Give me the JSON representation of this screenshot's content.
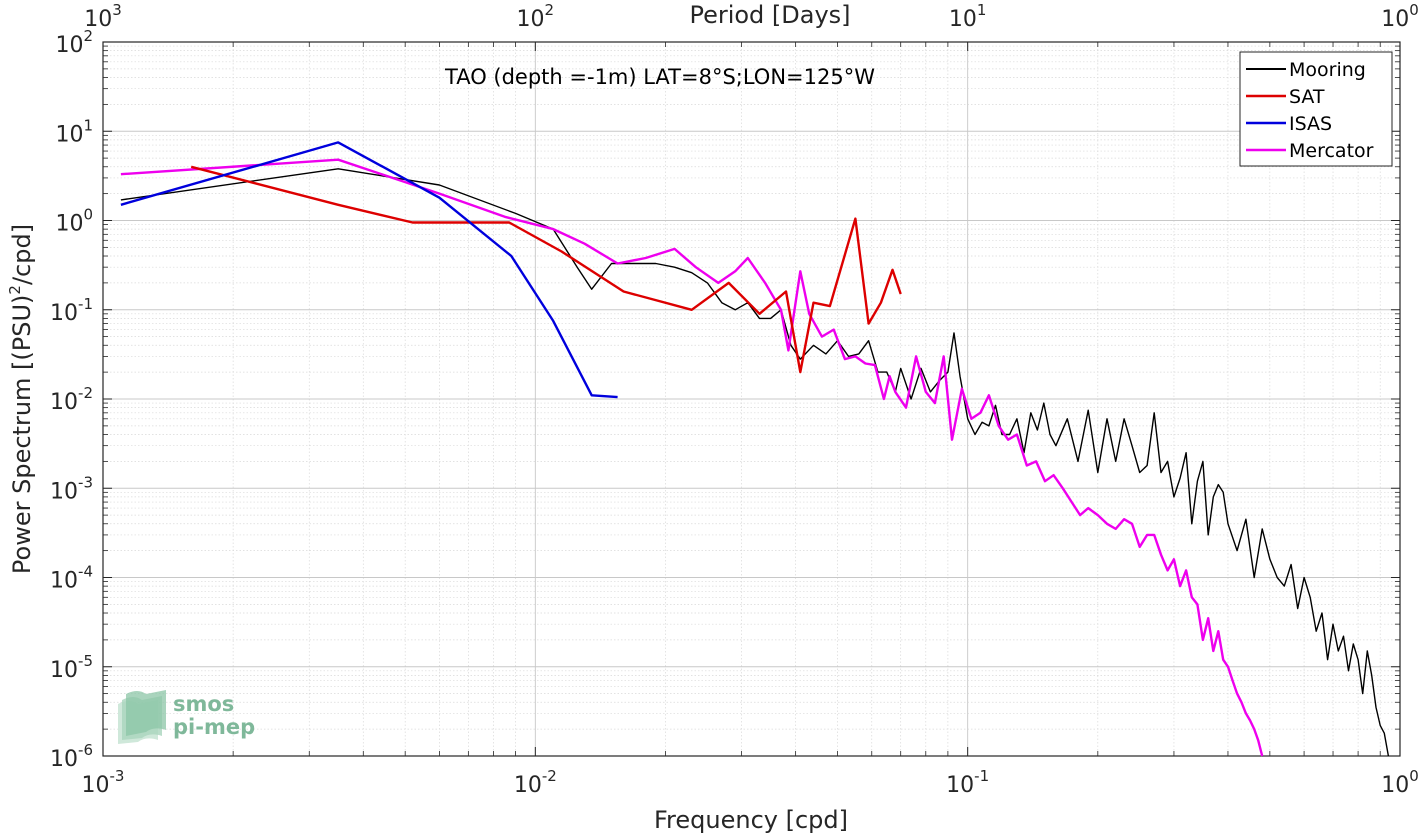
{
  "chart_data": {
    "type": "line",
    "title": "TAO (depth =-1m) LAT=8°S;LON=125°W",
    "xlabel": "Frequency [cpd]",
    "ylabel_main": "Power Spectrum [(PSU)",
    "ylabel_sup": "2",
    "ylabel_tail": "/cpd]",
    "top_xlabel": "Period [Days]",
    "x_scale": "log",
    "y_scale": "log",
    "xlim": [
      0.001,
      1
    ],
    "ylim": [
      1e-06,
      100
    ],
    "grid": true,
    "legend_position": "top-right",
    "x_ticks": [
      {
        "value": 0.001,
        "base": "10",
        "exp": "-3"
      },
      {
        "value": 0.01,
        "base": "10",
        "exp": "-2"
      },
      {
        "value": 0.1,
        "base": "10",
        "exp": "-1"
      },
      {
        "value": 1,
        "base": "10",
        "exp": "0"
      }
    ],
    "top_ticks": [
      {
        "value": 0.001,
        "base": "10",
        "exp": "3"
      },
      {
        "value": 0.01,
        "base": "10",
        "exp": "2"
      },
      {
        "value": 0.1,
        "base": "10",
        "exp": "1"
      },
      {
        "value": 1,
        "base": "10",
        "exp": "0"
      }
    ],
    "y_ticks": [
      {
        "value": 100,
        "base": "10",
        "exp": "2"
      },
      {
        "value": 10,
        "base": "10",
        "exp": "1"
      },
      {
        "value": 1,
        "base": "10",
        "exp": "0"
      },
      {
        "value": 0.1,
        "base": "10",
        "exp": "-1"
      },
      {
        "value": 0.01,
        "base": "10",
        "exp": "-2"
      },
      {
        "value": 0.001,
        "base": "10",
        "exp": "-3"
      },
      {
        "value": 0.0001,
        "base": "10",
        "exp": "-4"
      },
      {
        "value": 1e-05,
        "base": "10",
        "exp": "-5"
      },
      {
        "value": 1e-06,
        "base": "10",
        "exp": "-6"
      }
    ],
    "series": [
      {
        "name": "Mooring",
        "color": "#000000",
        "width": 1.4,
        "x": [
          0.0011,
          0.0035,
          0.006,
          0.009,
          0.011,
          0.0125,
          0.0135,
          0.015,
          0.0165,
          0.019,
          0.021,
          0.023,
          0.025,
          0.027,
          0.029,
          0.031,
          0.033,
          0.035,
          0.037,
          0.039,
          0.041,
          0.044,
          0.047,
          0.05,
          0.053,
          0.056,
          0.059,
          0.062,
          0.065,
          0.068,
          0.07,
          0.074,
          0.078,
          0.082,
          0.086,
          0.09,
          0.093,
          0.096,
          0.1,
          0.104,
          0.108,
          0.112,
          0.116,
          0.12,
          0.125,
          0.13,
          0.135,
          0.14,
          0.145,
          0.15,
          0.155,
          0.16,
          0.17,
          0.18,
          0.19,
          0.2,
          0.21,
          0.22,
          0.23,
          0.24,
          0.25,
          0.26,
          0.27,
          0.28,
          0.29,
          0.3,
          0.31,
          0.32,
          0.33,
          0.34,
          0.35,
          0.36,
          0.37,
          0.38,
          0.39,
          0.4,
          0.42,
          0.44,
          0.46,
          0.48,
          0.5,
          0.52,
          0.54,
          0.56,
          0.58,
          0.6,
          0.62,
          0.64,
          0.66,
          0.68,
          0.7,
          0.72,
          0.74,
          0.76,
          0.78,
          0.8,
          0.82,
          0.84,
          0.86,
          0.88,
          0.9,
          0.92,
          0.94
        ],
        "y": [
          1.7,
          3.8,
          2.5,
          1.2,
          0.8,
          0.3,
          0.17,
          0.33,
          0.33,
          0.33,
          0.3,
          0.26,
          0.2,
          0.12,
          0.1,
          0.12,
          0.08,
          0.08,
          0.1,
          0.04,
          0.028,
          0.04,
          0.032,
          0.045,
          0.03,
          0.032,
          0.045,
          0.02,
          0.02,
          0.012,
          0.022,
          0.01,
          0.022,
          0.012,
          0.016,
          0.02,
          0.055,
          0.018,
          0.006,
          0.004,
          0.0055,
          0.005,
          0.0085,
          0.004,
          0.004,
          0.006,
          0.0025,
          0.007,
          0.0045,
          0.009,
          0.004,
          0.003,
          0.006,
          0.002,
          0.0075,
          0.0015,
          0.006,
          0.002,
          0.006,
          0.003,
          0.0015,
          0.0018,
          0.007,
          0.0015,
          0.002,
          0.0008,
          0.0013,
          0.0025,
          0.0004,
          0.0012,
          0.002,
          0.0003,
          0.0008,
          0.0011,
          0.0009,
          0.0004,
          0.0002,
          0.00045,
          0.0001,
          0.00035,
          0.00016,
          0.0001,
          8e-05,
          0.00014,
          4.5e-05,
          0.0001,
          6e-05,
          2.5e-05,
          4e-05,
          1.2e-05,
          3e-05,
          1.5e-05,
          2.2e-05,
          9e-06,
          1.8e-05,
          1.2e-05,
          5e-06,
          1.5e-05,
          8e-06,
          3.5e-06,
          2.2e-06,
          1.8e-06,
          1e-06
        ]
      },
      {
        "name": "SAT",
        "color": "#dd0000",
        "width": 2.4,
        "x": [
          0.0016,
          0.0035,
          0.0052,
          0.0087,
          0.0115,
          0.016,
          0.023,
          0.028,
          0.033,
          0.038,
          0.041,
          0.044,
          0.048,
          0.055,
          0.059,
          0.063,
          0.067,
          0.07
        ],
        "y": [
          4.0,
          1.5,
          0.95,
          0.95,
          0.45,
          0.16,
          0.1,
          0.2,
          0.09,
          0.16,
          0.02,
          0.12,
          0.11,
          1.05,
          0.07,
          0.12,
          0.28,
          0.15
        ]
      },
      {
        "name": "ISAS",
        "color": "#0000dd",
        "width": 2.4,
        "x": [
          0.0011,
          0.0035,
          0.006,
          0.0088,
          0.011,
          0.0135,
          0.0155
        ],
        "y": [
          1.5,
          7.5,
          1.8,
          0.4,
          0.075,
          0.011,
          0.0105
        ]
      },
      {
        "name": "Mercator",
        "color": "#ee00ee",
        "width": 2.4,
        "x": [
          0.0011,
          0.0035,
          0.006,
          0.0085,
          0.011,
          0.013,
          0.0155,
          0.018,
          0.021,
          0.0235,
          0.0265,
          0.029,
          0.031,
          0.034,
          0.037,
          0.0385,
          0.041,
          0.043,
          0.046,
          0.049,
          0.052,
          0.055,
          0.058,
          0.061,
          0.064,
          0.066,
          0.068,
          0.072,
          0.076,
          0.08,
          0.084,
          0.088,
          0.092,
          0.097,
          0.102,
          0.107,
          0.112,
          0.118,
          0.124,
          0.13,
          0.137,
          0.144,
          0.151,
          0.158,
          0.166,
          0.174,
          0.182,
          0.19,
          0.2,
          0.21,
          0.22,
          0.23,
          0.24,
          0.25,
          0.26,
          0.27,
          0.28,
          0.29,
          0.3,
          0.31,
          0.32,
          0.33,
          0.34,
          0.35,
          0.36,
          0.37,
          0.38,
          0.39,
          0.4,
          0.41,
          0.42,
          0.43,
          0.44,
          0.45,
          0.46,
          0.47,
          0.48
        ],
        "y": [
          3.3,
          4.8,
          2.0,
          1.1,
          0.8,
          0.55,
          0.33,
          0.38,
          0.48,
          0.3,
          0.2,
          0.27,
          0.38,
          0.2,
          0.1,
          0.035,
          0.27,
          0.09,
          0.05,
          0.06,
          0.028,
          0.03,
          0.025,
          0.024,
          0.01,
          0.018,
          0.012,
          0.008,
          0.03,
          0.012,
          0.009,
          0.03,
          0.0035,
          0.013,
          0.006,
          0.007,
          0.011,
          0.005,
          0.0035,
          0.004,
          0.0018,
          0.002,
          0.0012,
          0.0014,
          0.001,
          0.0007,
          0.0005,
          0.0006,
          0.0005,
          0.0004,
          0.00035,
          0.00045,
          0.0004,
          0.00022,
          0.0003,
          0.0003,
          0.00018,
          0.00012,
          0.00016,
          8e-05,
          0.00012,
          6e-05,
          5e-05,
          2e-05,
          3.5e-05,
          1.5e-05,
          2.5e-05,
          1.2e-05,
          1e-05,
          7e-06,
          5e-06,
          4e-06,
          3e-06,
          2.5e-06,
          2e-06,
          1.5e-06,
          1e-06
        ]
      }
    ]
  },
  "logo": {
    "line1": "smos",
    "line2": "pi-mep"
  }
}
